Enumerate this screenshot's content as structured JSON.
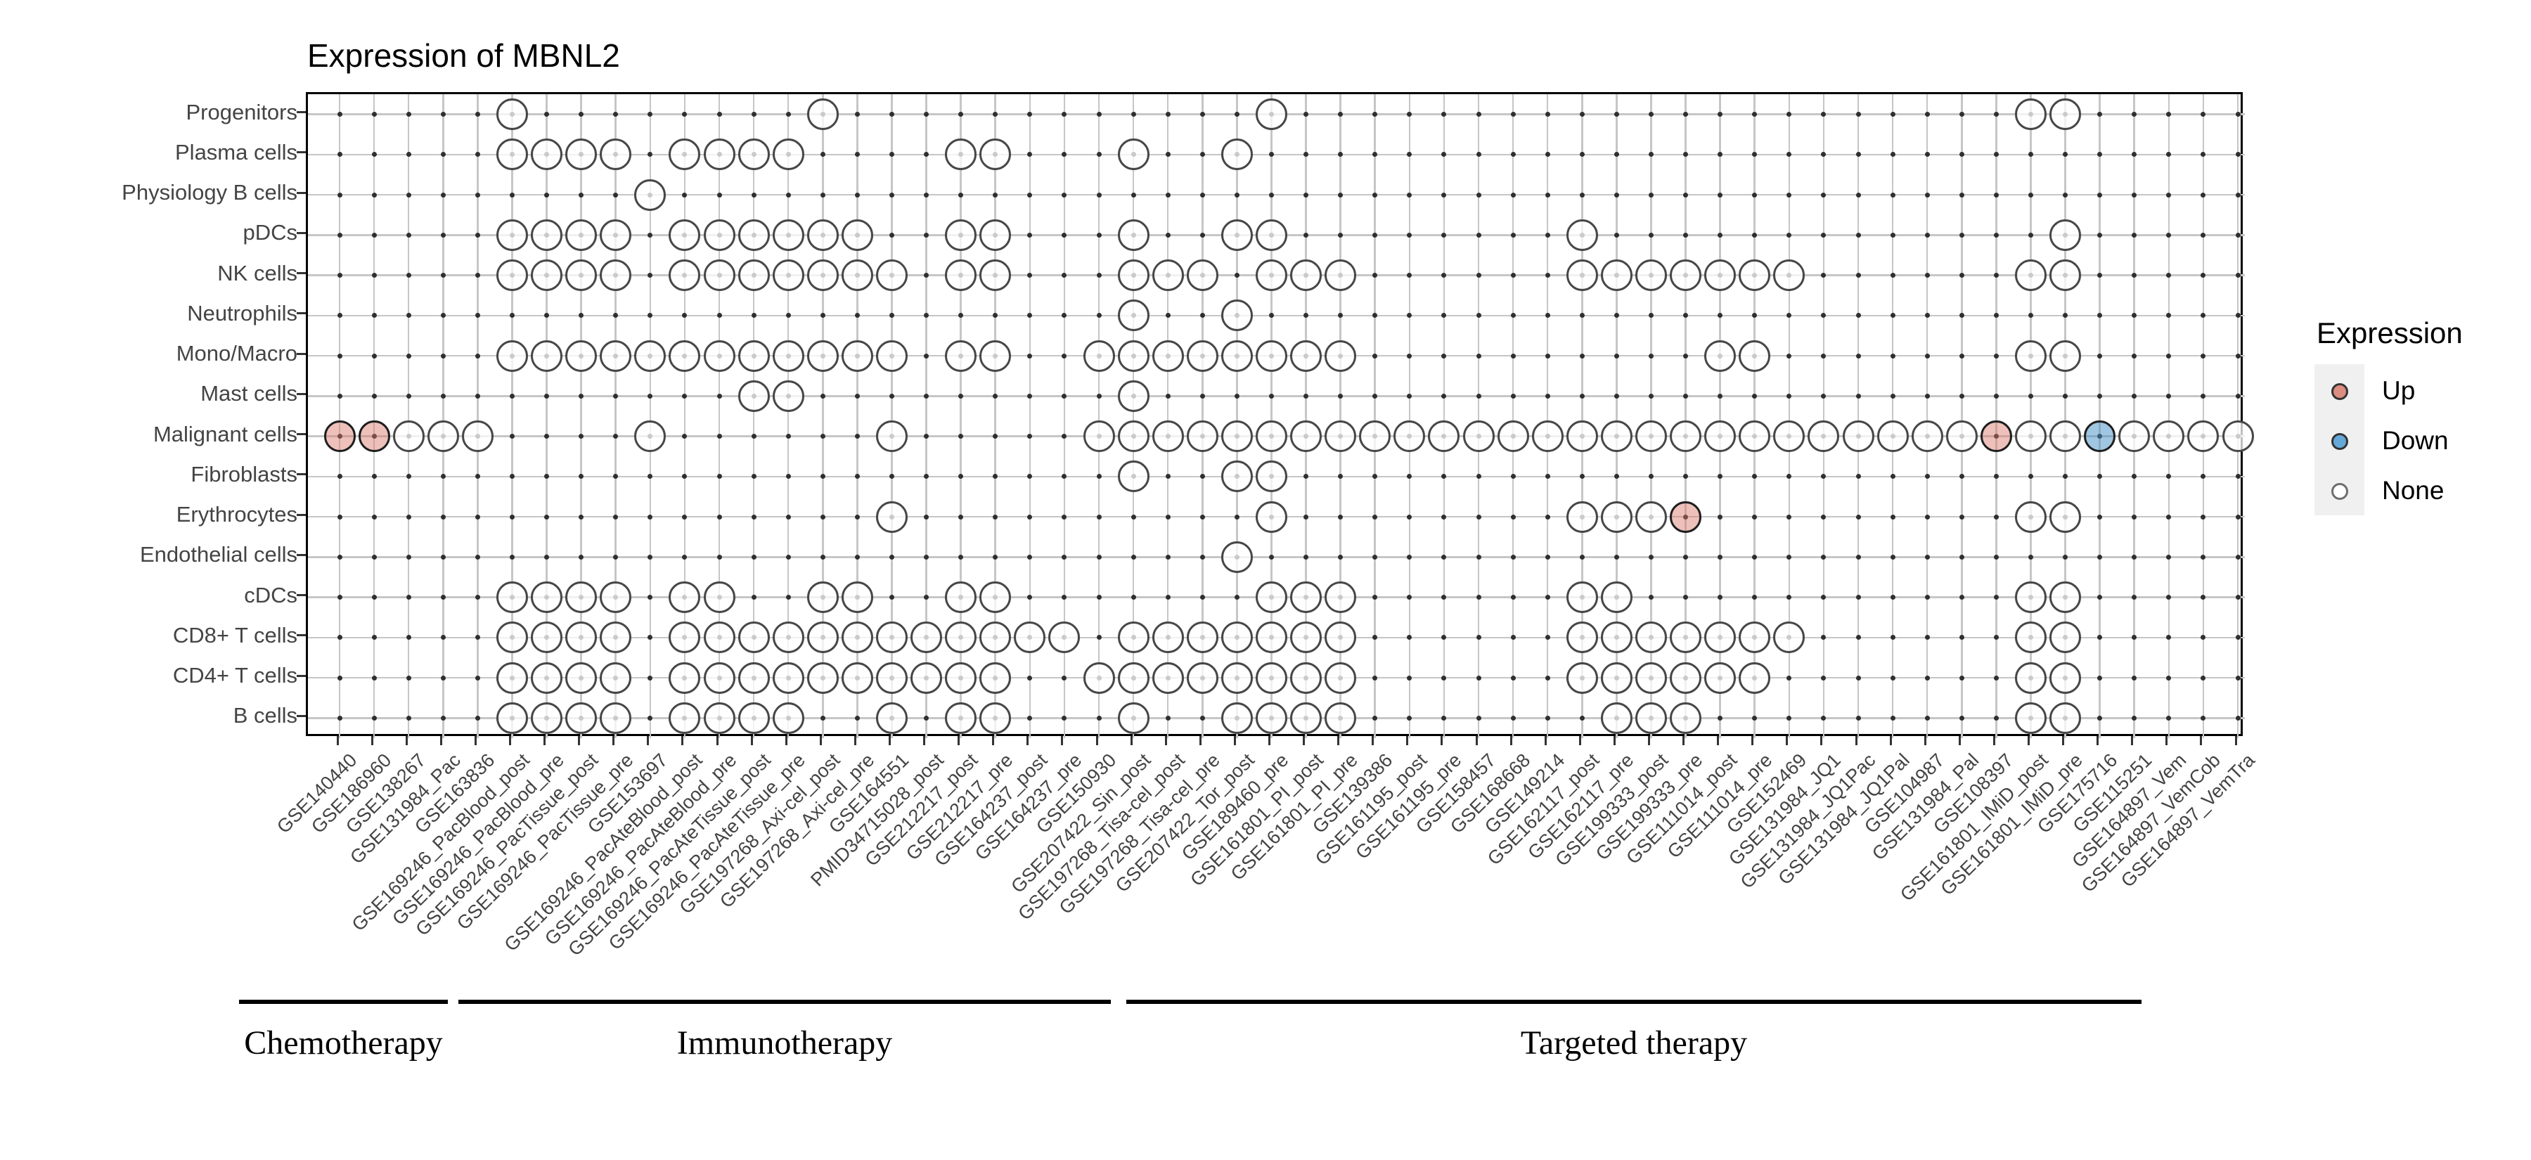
{
  "chart_data": {
    "type": "scatter",
    "subtype": "presence-dot-matrix",
    "title": "Expression of MBNL2",
    "xlabel": "",
    "ylabel": "",
    "grid": true,
    "legend_position": "right",
    "rows": [
      "Progenitors",
      "Plasma cells",
      "Physiology B cells",
      "pDCs",
      "NK cells",
      "Neutrophils",
      "Mono/Macro",
      "Mast cells",
      "Malignant cells",
      "Fibroblasts",
      "Erythrocytes",
      "Endothelial cells",
      "cDCs",
      "CD8+ T cells",
      "CD4+ T cells",
      "B cells"
    ],
    "columns": [
      "GSE140440",
      "GSE186960",
      "GSE138267",
      "GSE131984_Pac",
      "GSE163836",
      "GSE169246_PacBlood_post",
      "GSE169246_PacBlood_pre",
      "GSE169246_PacTissue_post",
      "GSE169246_PacTissue_pre",
      "GSE153697",
      "GSE169246_PacAteBlood_post",
      "GSE169246_PacAteBlood_pre",
      "GSE169246_PacAteTissue_post",
      "GSE169246_PacAteTissue_pre",
      "GSE197268_Axi-cel_post",
      "GSE197268_Axi-cel_pre",
      "GSE164551",
      "PMID34715028_post",
      "GSE212217_post",
      "GSE212217_pre",
      "GSE164237_post",
      "GSE164237_pre",
      "GSE150930",
      "GSE207422_Sin_post",
      "GSE197268_Tisa-cel_post",
      "GSE197268_Tisa-cel_pre",
      "GSE207422_Tor_post",
      "GSE189460_pre",
      "GSE161801_PI_post",
      "GSE161801_PI_pre",
      "GSE139386",
      "GSE161195_post",
      "GSE161195_pre",
      "GSE158457",
      "GSE168668",
      "GSE149214",
      "GSE162117_post",
      "GSE162117_pre",
      "GSE199333_post",
      "GSE199333_pre",
      "GSE111014_post",
      "GSE111014_pre",
      "GSE152469",
      "GSE131984_JQ1",
      "GSE131984_JQ1Pac",
      "GSE131984_JQ1Pal",
      "GSE104987",
      "GSE131984_Pal",
      "GSE108397",
      "GSE161801_IMiD_post",
      "GSE161801_IMiD_pre",
      "GSE175716",
      "GSE115251",
      "GSE164897_Vem",
      "GSE164897_VemCob",
      "GSE164897_VemTra"
    ],
    "groups": [
      {
        "label": "Chemotherapy",
        "col_start": 1,
        "col_end": 4
      },
      {
        "label": "Immunotherapy",
        "col_start": 5,
        "col_end": 23
      },
      {
        "label": "Targeted therapy",
        "col_start": 24,
        "col_end": 56
      }
    ],
    "legend": {
      "title": "Expression",
      "items": [
        {
          "label": "Up",
          "color": "#DC8C80"
        },
        {
          "label": "Down",
          "color": "#66A9D8"
        },
        {
          "label": "None",
          "color": "#FFFFFF"
        }
      ]
    },
    "cells": [
      {
        "row": "Progenitors",
        "up": [],
        "down": [],
        "none": [
          6,
          15,
          28,
          50,
          51
        ]
      },
      {
        "row": "Plasma cells",
        "up": [],
        "down": [],
        "none": [
          6,
          7,
          8,
          9,
          11,
          12,
          13,
          14,
          19,
          20,
          24,
          27
        ]
      },
      {
        "row": "Physiology B cells",
        "up": [],
        "down": [],
        "none": [
          10
        ]
      },
      {
        "row": "pDCs",
        "up": [],
        "down": [],
        "none": [
          6,
          7,
          8,
          9,
          11,
          12,
          13,
          14,
          15,
          16,
          19,
          20,
          24,
          27,
          28,
          37,
          51
        ]
      },
      {
        "row": "NK cells",
        "up": [],
        "down": [],
        "none": [
          6,
          7,
          8,
          9,
          11,
          12,
          13,
          14,
          15,
          16,
          17,
          19,
          20,
          24,
          25,
          26,
          28,
          29,
          30,
          37,
          38,
          39,
          40,
          41,
          42,
          43,
          50,
          51
        ]
      },
      {
        "row": "Neutrophils",
        "up": [],
        "down": [],
        "none": [
          24,
          27
        ]
      },
      {
        "row": "Mono/Macro",
        "up": [],
        "down": [],
        "none": [
          6,
          7,
          8,
          9,
          10,
          11,
          12,
          13,
          14,
          15,
          16,
          17,
          19,
          20,
          23,
          24,
          25,
          26,
          27,
          28,
          29,
          30,
          41,
          42,
          50,
          51
        ]
      },
      {
        "row": "Mast cells",
        "up": [],
        "down": [],
        "none": [
          13,
          14,
          24
        ]
      },
      {
        "row": "Malignant cells",
        "up": [
          1,
          2,
          49
        ],
        "down": [
          52
        ],
        "none": [
          3,
          4,
          5,
          10,
          17,
          23,
          24,
          25,
          26,
          27,
          28,
          29,
          30,
          31,
          32,
          33,
          34,
          35,
          36,
          37,
          38,
          39,
          40,
          41,
          42,
          43,
          44,
          45,
          46,
          47,
          48,
          50,
          51,
          53,
          54,
          55,
          56
        ]
      },
      {
        "row": "Fibroblasts",
        "up": [],
        "down": [],
        "none": [
          24,
          27,
          28
        ]
      },
      {
        "row": "Erythrocytes",
        "up": [
          40
        ],
        "down": [],
        "none": [
          17,
          28,
          37,
          38,
          39,
          50,
          51
        ]
      },
      {
        "row": "Endothelial cells",
        "up": [],
        "down": [],
        "none": [
          27
        ]
      },
      {
        "row": "cDCs",
        "up": [],
        "down": [],
        "none": [
          6,
          7,
          8,
          9,
          11,
          12,
          15,
          16,
          19,
          20,
          28,
          29,
          30,
          37,
          38,
          50,
          51
        ]
      },
      {
        "row": "CD8+ T cells",
        "up": [],
        "down": [],
        "none": [
          6,
          7,
          8,
          9,
          11,
          12,
          13,
          14,
          15,
          16,
          17,
          18,
          19,
          20,
          21,
          22,
          24,
          25,
          26,
          27,
          28,
          29,
          30,
          37,
          38,
          39,
          40,
          41,
          42,
          43,
          50,
          51
        ]
      },
      {
        "row": "CD4+ T cells",
        "up": [],
        "down": [],
        "none": [
          6,
          7,
          8,
          9,
          11,
          12,
          13,
          14,
          15,
          16,
          17,
          18,
          19,
          20,
          23,
          24,
          25,
          26,
          27,
          28,
          29,
          30,
          37,
          38,
          39,
          40,
          41,
          42,
          50,
          51
        ]
      },
      {
        "row": "B cells",
        "up": [],
        "down": [],
        "none": [
          6,
          7,
          8,
          9,
          11,
          12,
          13,
          14,
          17,
          19,
          20,
          24,
          27,
          28,
          29,
          30,
          38,
          39,
          40,
          50,
          51
        ]
      }
    ],
    "colors": {
      "up_fill": "#F0C8C2",
      "down_fill": "#AACFE5",
      "none_fill": "#FFFFFF",
      "circle_stroke": "#474747",
      "grid": "#C6C6C6",
      "point_dot": "#2F2F2F"
    }
  }
}
